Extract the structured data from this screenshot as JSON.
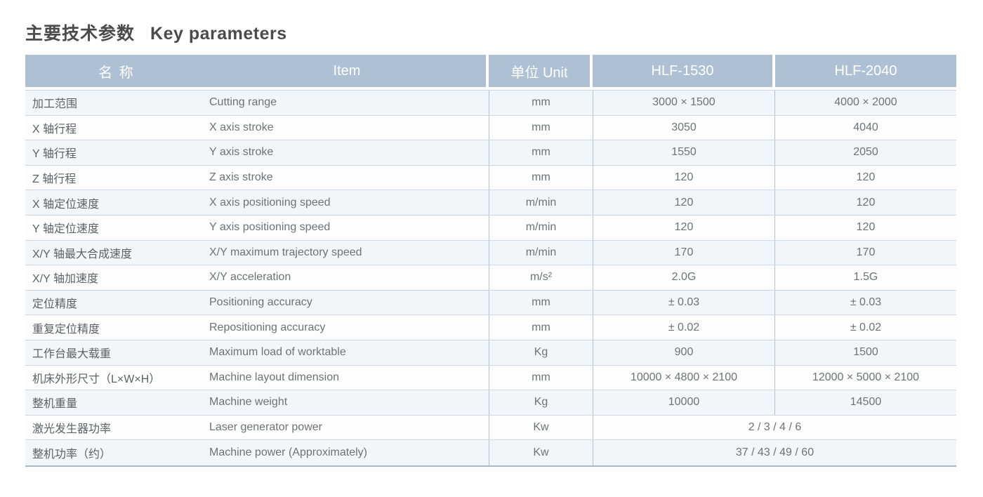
{
  "title": {
    "zh": "主要技术参数",
    "en": "Key parameters"
  },
  "colors": {
    "header_bg": "#aec0d3",
    "header_text": "#ffffff",
    "row_alt_bg": "#f3f6f9",
    "grid_line": "#ccd7e1",
    "column_divider": "#abc3d5"
  },
  "table": {
    "header": {
      "name_zh": "名  称",
      "item": "Item",
      "unit": "单位 Unit",
      "model1": "HLF-1530",
      "model2": "HLF-2040"
    },
    "rows": [
      {
        "zh": "加工范围",
        "en": "Cutting range",
        "unit": "mm",
        "v1": "3000 × 1500",
        "v2": "4000 × 2000"
      },
      {
        "zh": "X 轴行程",
        "en": "X axis stroke",
        "unit": "mm",
        "v1": "3050",
        "v2": "4040"
      },
      {
        "zh": "Y 轴行程",
        "en": "Y axis stroke",
        "unit": "mm",
        "v1": "1550",
        "v2": "2050"
      },
      {
        "zh": "Z 轴行程",
        "en": "Z axis stroke",
        "unit": "mm",
        "v1": "120",
        "v2": "120"
      },
      {
        "zh": "X 轴定位速度",
        "en": "X axis positioning speed",
        "unit": "m/min",
        "v1": "120",
        "v2": "120"
      },
      {
        "zh": "Y 轴定位速度",
        "en": "Y axis positioning speed",
        "unit": "m/min",
        "v1": "120",
        "v2": "120"
      },
      {
        "zh": "X/Y 轴最大合成速度",
        "en": "X/Y maximum trajectory speed",
        "unit": "m/min",
        "v1": "170",
        "v2": "170"
      },
      {
        "zh": "X/Y 轴加速度",
        "en": "X/Y acceleration",
        "unit": "m/s²",
        "v1": "2.0G",
        "v2": "1.5G"
      },
      {
        "zh": "定位精度",
        "en": "Positioning accuracy",
        "unit": "mm",
        "v1": "± 0.03",
        "v2": "± 0.03"
      },
      {
        "zh": "重复定位精度",
        "en": "Repositioning accuracy",
        "unit": "mm",
        "v1": "± 0.02",
        "v2": "± 0.02"
      },
      {
        "zh": "工作台最大载重",
        "en": "Maximum load of worktable",
        "unit": "Kg",
        "v1": "900",
        "v2": "1500"
      },
      {
        "zh": "机床外形尺寸（L×W×H）",
        "en": "Machine layout dimension",
        "unit": "mm",
        "v1": "10000 × 4800 × 2100",
        "v2": "12000 × 5000 × 2100"
      },
      {
        "zh": "整机重量",
        "en": "Machine weight",
        "unit": "Kg",
        "v1": "10000",
        "v2": "14500"
      },
      {
        "zh": "激光发生器功率",
        "en": "Laser generator power",
        "unit": "Kw",
        "merged": "2 / 3 / 4 / 6"
      },
      {
        "zh": "整机功率（约）",
        "en": "Machine power (Approximately)",
        "unit": "Kw",
        "merged": "37 / 43 / 49 / 60"
      }
    ]
  }
}
